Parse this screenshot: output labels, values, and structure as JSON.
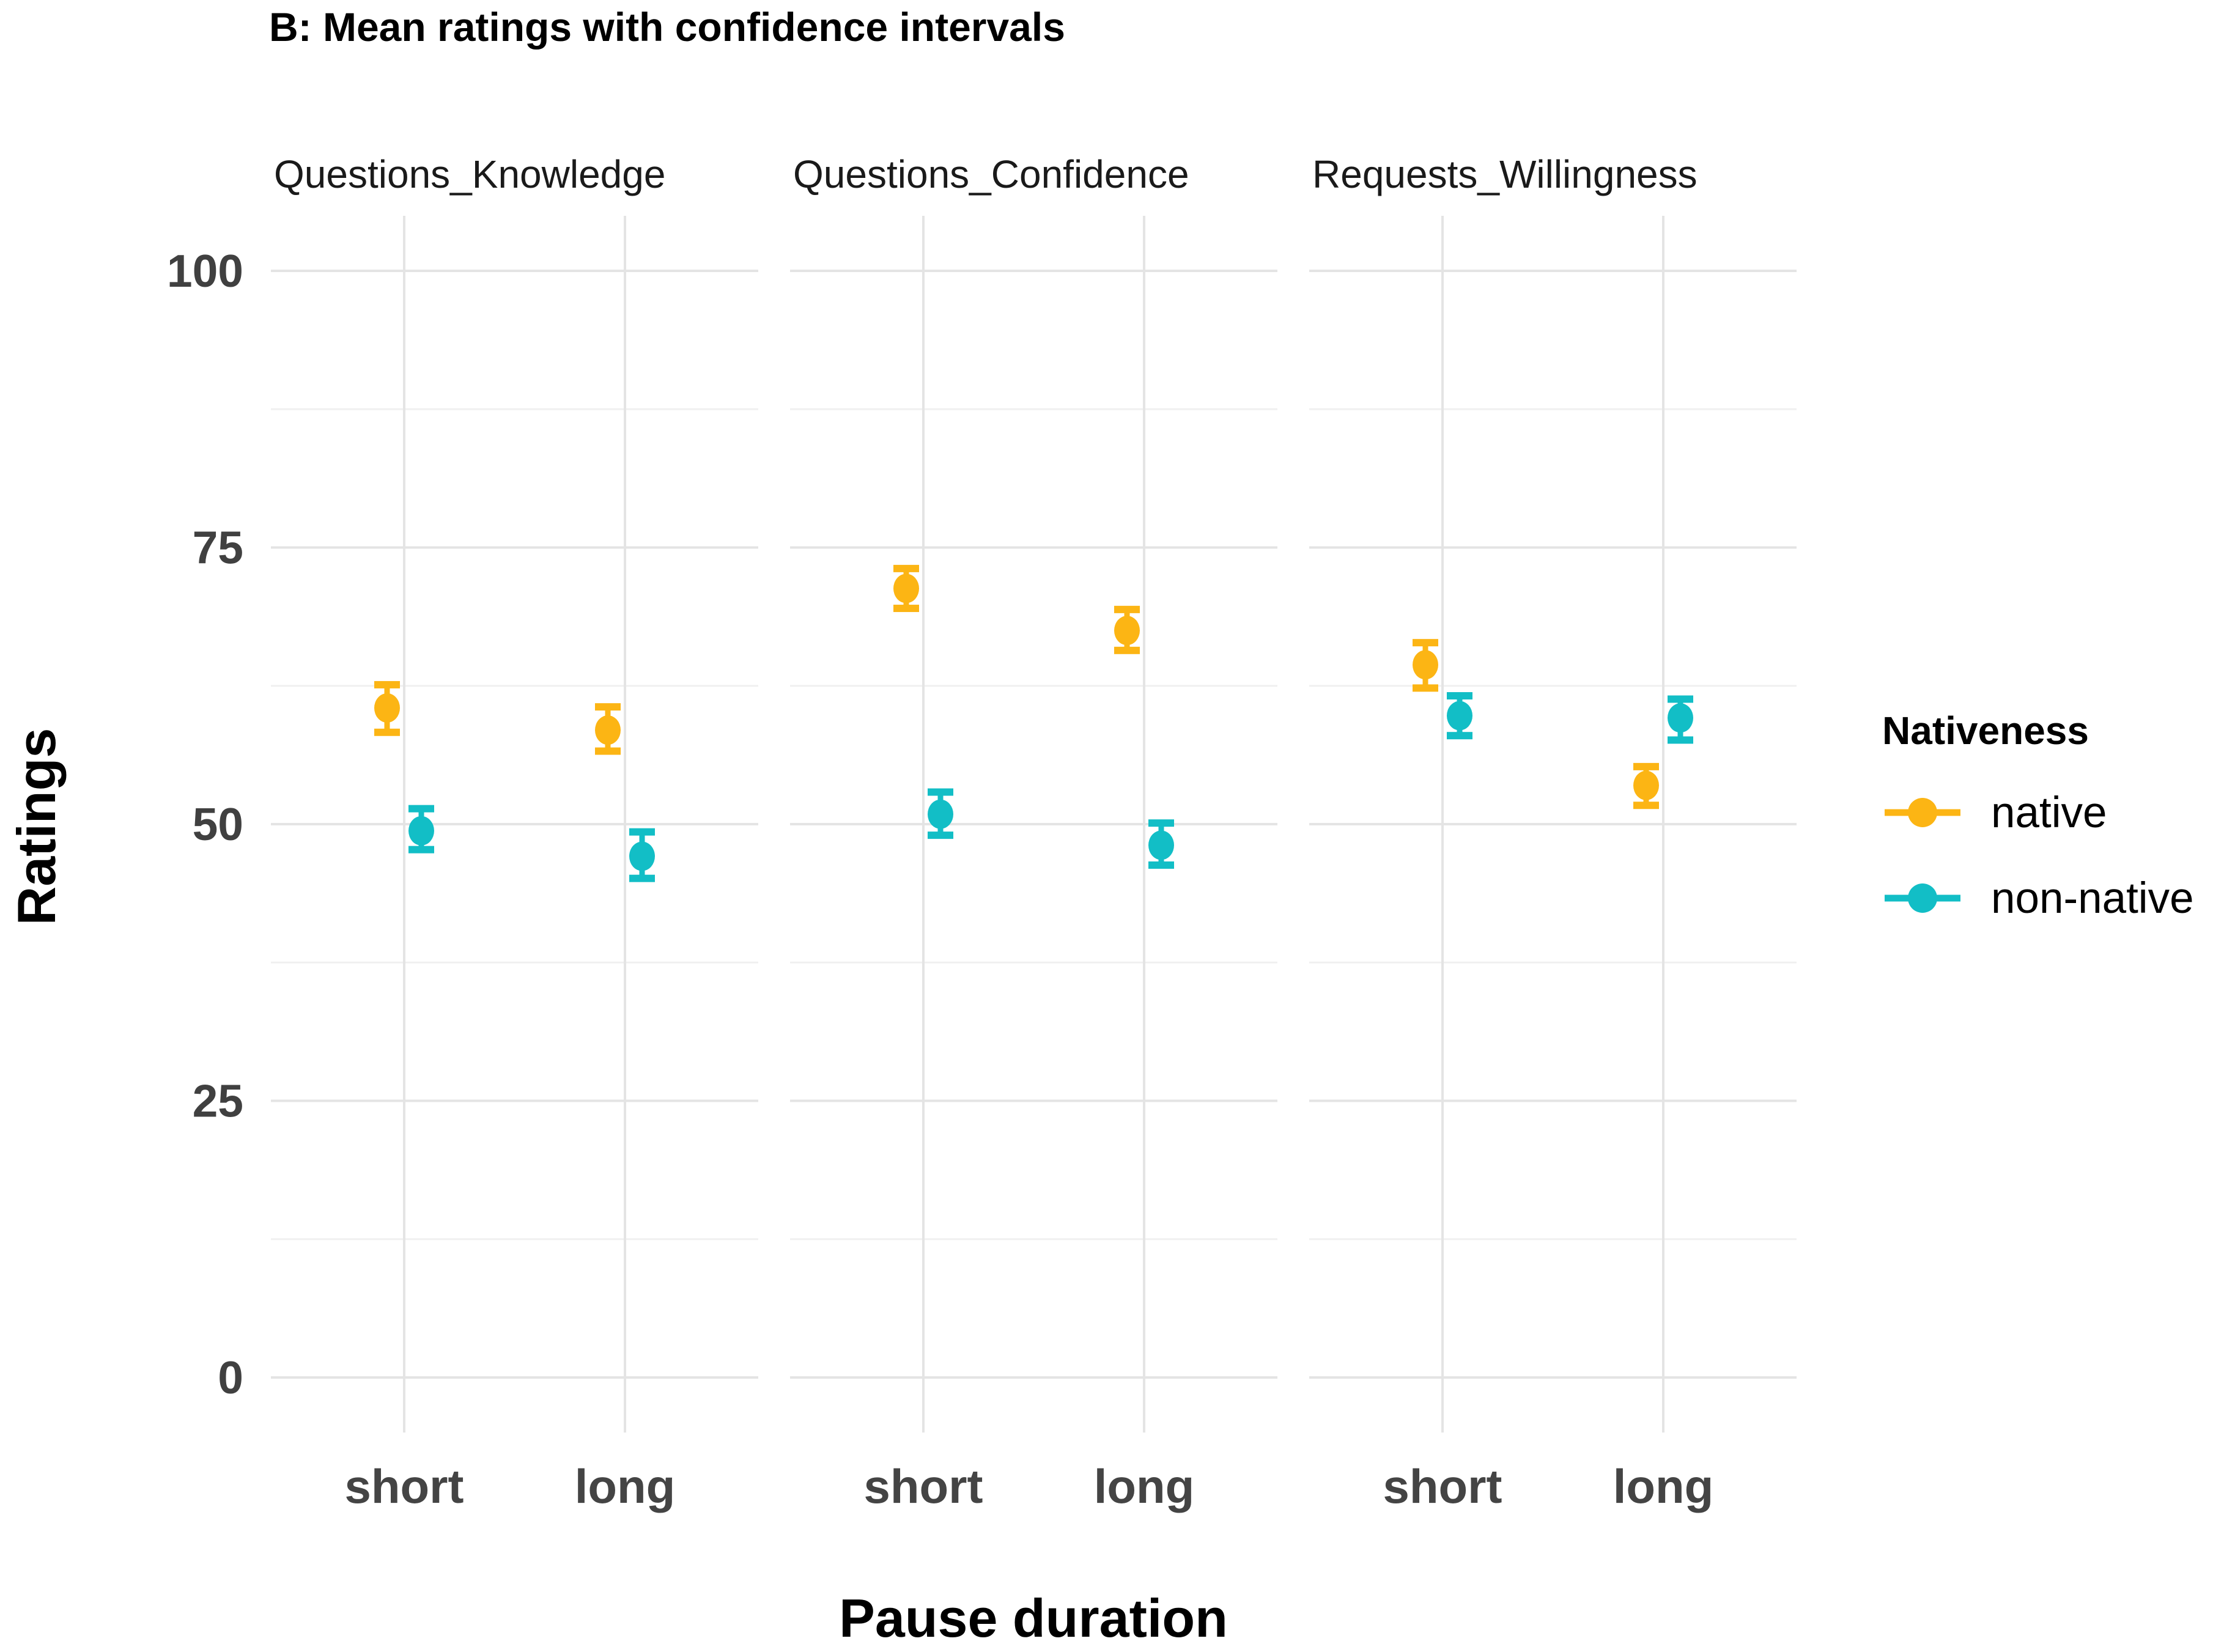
{
  "title": "B: Mean ratings with confidence intervals",
  "axes": {
    "x_label": "Pause duration",
    "y_label": "Ratings",
    "y_ticks": [
      0,
      25,
      50,
      75,
      100
    ],
    "y_range": [
      0,
      100
    ],
    "x_levels": [
      "short",
      "long"
    ]
  },
  "legend": {
    "title": "Nativeness",
    "position": "right"
  },
  "chart_data": {
    "type": "scatter",
    "subtype": "pointrange-with-error-bars",
    "grid": "on",
    "categories": [
      "short",
      "long"
    ],
    "ylim": [
      0,
      100
    ],
    "groups": [
      {
        "name": "native",
        "color": "#FCB514"
      },
      {
        "name": "non-native",
        "color": "#12BEC6"
      }
    ],
    "facets": [
      {
        "label": "Questions_Knowledge",
        "series": [
          {
            "group": "native",
            "values": [
              {
                "x": "short",
                "mean": 60.5,
                "ci": [
                  58.3,
                  62.6
                ]
              },
              {
                "x": "long",
                "mean": 58.5,
                "ci": [
                  56.6,
                  60.6
                ]
              }
            ]
          },
          {
            "group": "non-native",
            "values": [
              {
                "x": "short",
                "mean": 49.4,
                "ci": [
                  47.7,
                  51.4
                ]
              },
              {
                "x": "long",
                "mean": 47.1,
                "ci": [
                  45.1,
                  49.3
                ]
              }
            ]
          }
        ]
      },
      {
        "label": "Questions_Confidence",
        "series": [
          {
            "group": "native",
            "values": [
              {
                "x": "short",
                "mean": 71.3,
                "ci": [
                  69.5,
                  73.1
                ]
              },
              {
                "x": "long",
                "mean": 67.5,
                "ci": [
                  65.7,
                  69.4
                ]
              }
            ]
          },
          {
            "group": "non-native",
            "values": [
              {
                "x": "short",
                "mean": 50.9,
                "ci": [
                  49.0,
                  52.9
                ]
              },
              {
                "x": "long",
                "mean": 48.1,
                "ci": [
                  46.3,
                  50.1
                ]
              }
            ]
          }
        ]
      },
      {
        "label": "Requests_Willingness",
        "series": [
          {
            "group": "native",
            "values": [
              {
                "x": "short",
                "mean": 64.4,
                "ci": [
                  62.3,
                  66.4
                ]
              },
              {
                "x": "long",
                "mean": 53.5,
                "ci": [
                  51.7,
                  55.2
                ]
              }
            ]
          },
          {
            "group": "non-native",
            "values": [
              {
                "x": "short",
                "mean": 59.8,
                "ci": [
                  58.0,
                  61.6
                ]
              },
              {
                "x": "long",
                "mean": 59.6,
                "ci": [
                  57.6,
                  61.3
                ]
              }
            ]
          }
        ]
      }
    ]
  }
}
